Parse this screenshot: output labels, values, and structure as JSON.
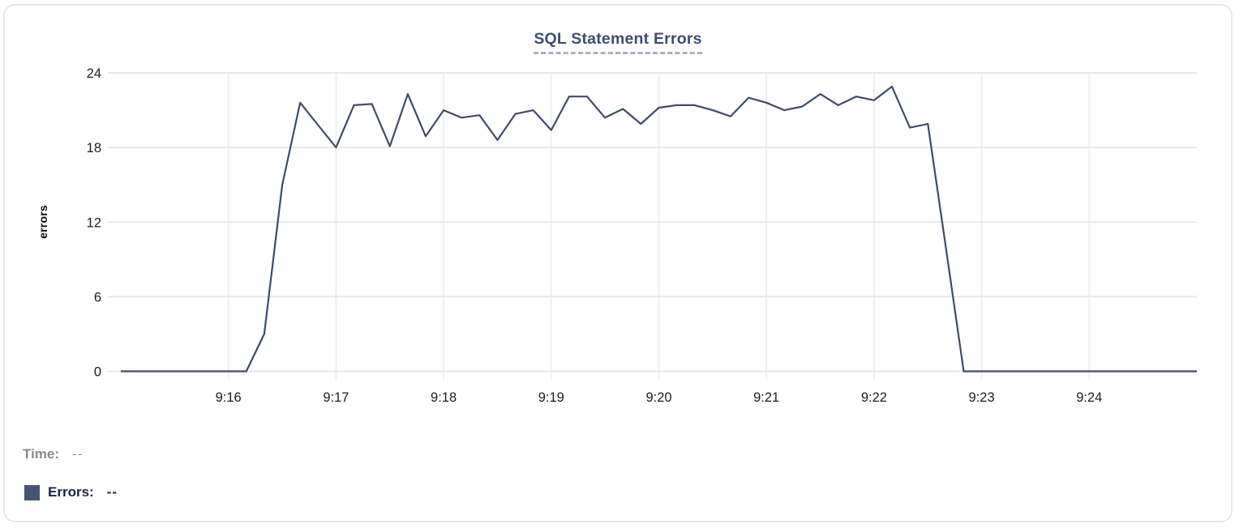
{
  "chart_data": {
    "type": "line",
    "title": "SQL Statement Errors",
    "xlabel": "",
    "ylabel": "errors",
    "x_ticks": [
      "9:16",
      "9:17",
      "9:18",
      "9:19",
      "9:20",
      "9:21",
      "9:22",
      "9:23",
      "9:24"
    ],
    "y_ticks": [
      0,
      6,
      12,
      18,
      24
    ],
    "ylim": [
      0,
      24
    ],
    "x_range": [
      "9:15:00",
      "9:25:00"
    ],
    "sample_interval_seconds": 10,
    "grid": "on",
    "series": [
      {
        "name": "Errors",
        "color": "#3e4c69",
        "times": [
          "9:15:00",
          "9:15:10",
          "9:15:20",
          "9:15:30",
          "9:15:40",
          "9:15:50",
          "9:16:00",
          "9:16:10",
          "9:16:20",
          "9:16:30",
          "9:16:40",
          "9:16:50",
          "9:17:00",
          "9:17:10",
          "9:17:20",
          "9:17:30",
          "9:17:40",
          "9:17:50",
          "9:18:00",
          "9:18:10",
          "9:18:20",
          "9:18:30",
          "9:18:40",
          "9:18:50",
          "9:19:00",
          "9:19:10",
          "9:19:20",
          "9:19:30",
          "9:19:40",
          "9:19:50",
          "9:20:00",
          "9:20:10",
          "9:20:20",
          "9:20:30",
          "9:20:40",
          "9:20:50",
          "9:21:00",
          "9:21:10",
          "9:21:20",
          "9:21:30",
          "9:21:40",
          "9:21:50",
          "9:22:00",
          "9:22:10",
          "9:22:20",
          "9:22:30",
          "9:22:40",
          "9:22:50",
          "9:23:00",
          "9:23:10",
          "9:23:20",
          "9:23:30",
          "9:23:40",
          "9:23:50",
          "9:24:00",
          "9:24:10",
          "9:24:20",
          "9:24:30",
          "9:24:40",
          "9:24:50",
          "9:25:00"
        ],
        "values": [
          0,
          0,
          0,
          0,
          0,
          0,
          0,
          0,
          3,
          15,
          21.6,
          19.8,
          18,
          21.4,
          21.5,
          18.1,
          22.3,
          18.9,
          21,
          20.4,
          20.6,
          18.6,
          20.7,
          21,
          19.4,
          22.1,
          22.1,
          20.4,
          21.1,
          19.9,
          21.2,
          21.4,
          21.4,
          21,
          20.5,
          22,
          21.6,
          21,
          21.3,
          22.3,
          21.4,
          22.1,
          21.8,
          22.9,
          19.6,
          19.9,
          10,
          0,
          0,
          0,
          0,
          0,
          0,
          0,
          0,
          0,
          0,
          0,
          0,
          0,
          0
        ]
      }
    ],
    "legend": {
      "position": "bottom-left",
      "entries": [
        {
          "label": "Time:",
          "value": "--"
        },
        {
          "label": "Errors:",
          "value": "--",
          "swatch": "#465471"
        }
      ]
    }
  }
}
